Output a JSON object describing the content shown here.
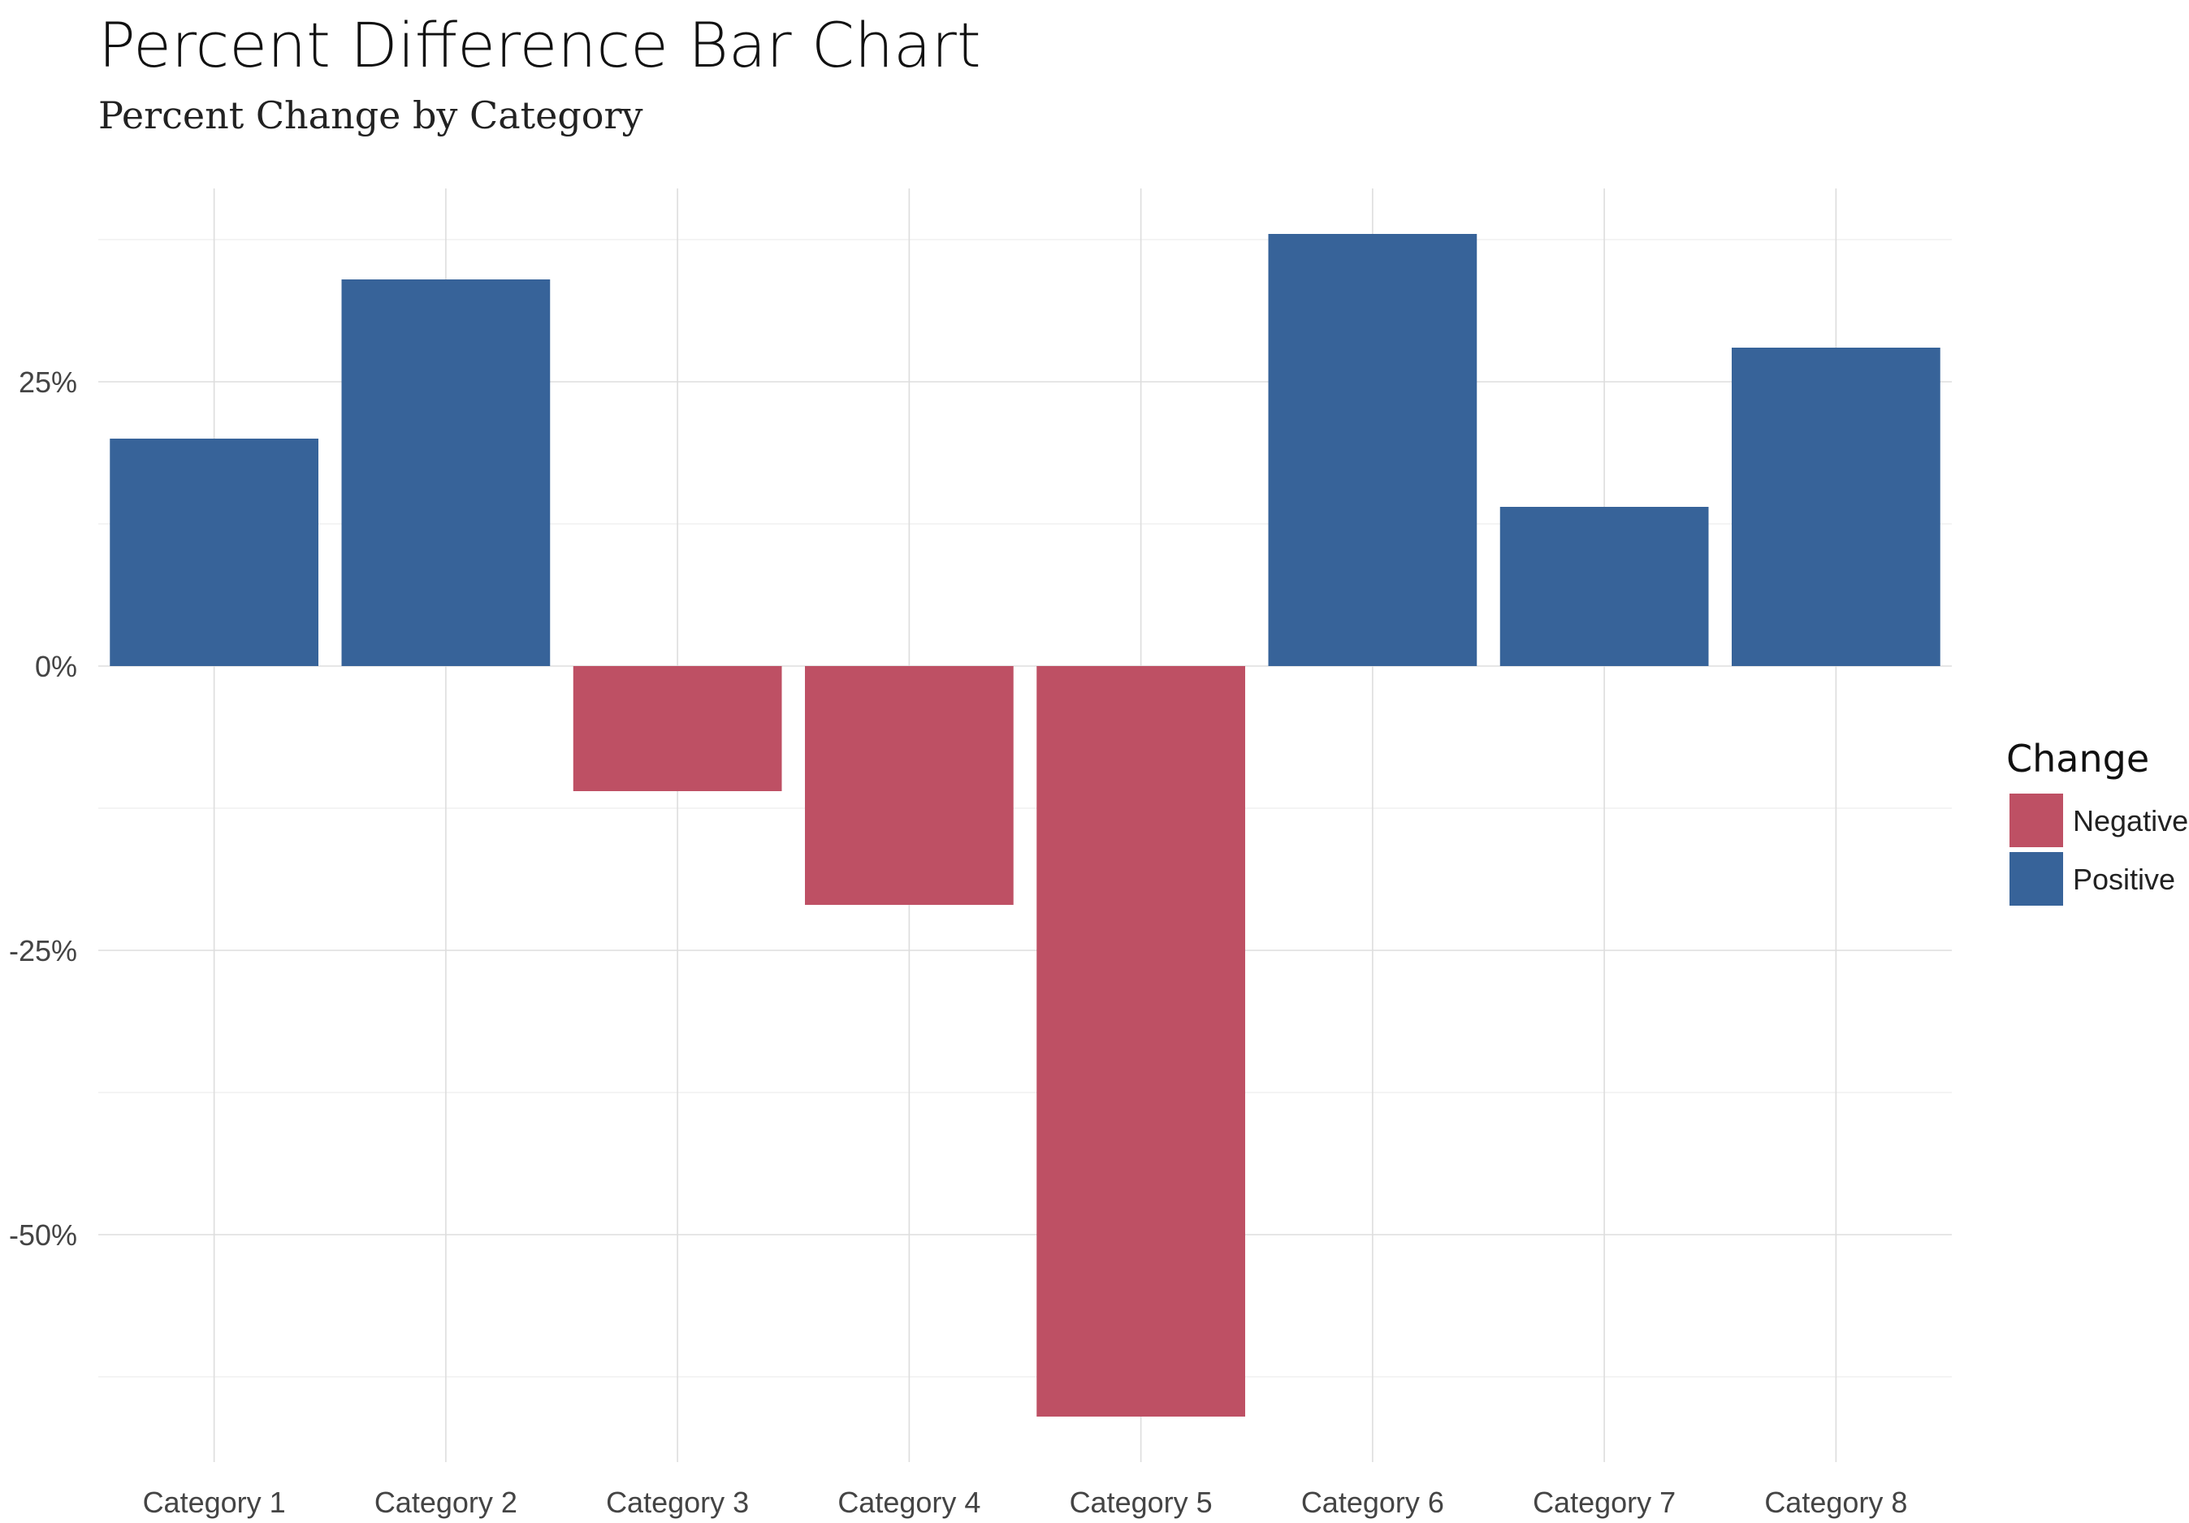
{
  "chart_data": {
    "type": "bar",
    "title": "Percent Difference Bar Chart",
    "subtitle": "Percent Change by Category",
    "xlabel": "",
    "ylabel": "",
    "categories": [
      "Category 1",
      "Category 2",
      "Category 3",
      "Category 4",
      "Category 5",
      "Category 6",
      "Category 7",
      "Category 8"
    ],
    "values": [
      0.2,
      0.34,
      -0.11,
      -0.21,
      -0.66,
      0.38,
      0.14,
      0.28
    ],
    "change": [
      "Positive",
      "Positive",
      "Negative",
      "Negative",
      "Negative",
      "Positive",
      "Positive",
      "Positive"
    ],
    "ylim": [
      -0.7,
      0.42
    ],
    "y_ticks": [
      0.25,
      0,
      -0.25,
      -0.5
    ],
    "y_tick_labels": [
      "25%",
      "0%",
      "-25%",
      "-50%"
    ],
    "grid": true,
    "legend": {
      "title": "Change",
      "position": "right",
      "entries": [
        {
          "label": "Negative",
          "color": "#BE5064"
        },
        {
          "label": "Positive",
          "color": "#376399"
        }
      ]
    },
    "colors": {
      "Negative": "#BE5064",
      "Positive": "#376399",
      "grid_major": "#DDDDDD",
      "grid_minor": "#EEEEEE"
    }
  }
}
